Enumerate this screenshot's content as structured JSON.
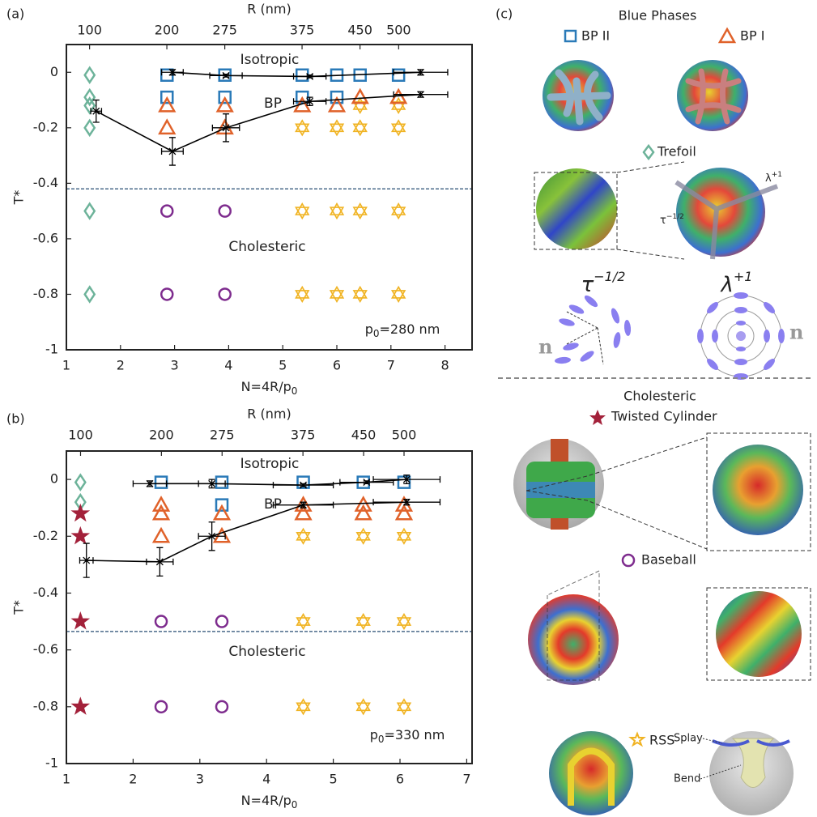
{
  "chart_data": [
    {
      "type": "scatter",
      "label": "(a)",
      "y_label": "T*",
      "x_label": {
        "text": "N=4R/p",
        "sub": "0"
      },
      "x2_label": "R (nm)",
      "xlim": [
        1,
        8.5
      ],
      "xticks": [
        1,
        2,
        3,
        4,
        5,
        6,
        7,
        8
      ],
      "x2lim": [
        70,
        595
      ],
      "x2ticks": [
        100,
        200,
        275,
        375,
        450,
        500
      ],
      "ylim": [
        -1,
        0.1
      ],
      "yticks": [
        -1,
        -0.8,
        -0.6,
        -0.4,
        -0.2,
        0
      ],
      "boundary": -0.42,
      "annotations": [
        "Isotropic",
        "BP",
        "Cholesteric"
      ],
      "pitch": {
        "text": "p",
        "sub": "0",
        "tail": "=280 nm"
      },
      "series": [
        {
          "marker": "diamond",
          "color": "#6db39a",
          "x": [
            1.43,
            1.43,
            1.43,
            1.43,
            1.43,
            1.43
          ],
          "y": [
            -0.01,
            -0.09,
            -0.12,
            -0.2,
            -0.5,
            -0.8
          ]
        },
        {
          "marker": "square",
          "color": "#2a7ab8",
          "x": [
            2.86,
            2.86,
            3.93,
            3.93,
            5.36,
            5.36,
            6.0,
            6.0,
            6.43,
            7.14
          ],
          "y": [
            -0.01,
            -0.09,
            -0.01,
            -0.09,
            -0.01,
            -0.09,
            -0.01,
            -0.09,
            -0.01,
            -0.01
          ]
        },
        {
          "marker": "hexagram",
          "color": "#f0b323",
          "x": [
            5.36,
            5.36,
            5.36,
            6.0,
            6.0,
            6.0,
            6.43,
            6.43,
            6.43,
            6.43,
            7.14,
            7.14,
            7.14,
            7.14
          ],
          "y": [
            -0.2,
            -0.5,
            -0.8,
            -0.2,
            -0.5,
            -0.8,
            -0.12,
            -0.2,
            -0.5,
            -0.8,
            -0.12,
            -0.2,
            -0.5,
            -0.8
          ]
        },
        {
          "marker": "triangle",
          "color": "#e0622a",
          "x": [
            2.86,
            2.86,
            3.93,
            3.93,
            5.36,
            6.0,
            6.43,
            7.14
          ],
          "y": [
            -0.12,
            -0.2,
            -0.12,
            -0.2,
            -0.12,
            -0.12,
            -0.09,
            -0.09
          ]
        },
        {
          "marker": "circle",
          "color": "#7e2c8e",
          "x": [
            2.86,
            2.86,
            3.93,
            3.93
          ],
          "y": [
            -0.5,
            -0.8,
            -0.5,
            -0.8
          ]
        },
        {
          "color": "#000000",
          "x": [
            2.96,
            3.95,
            5.5,
            7.55
          ],
          "y": [
            0,
            -0.012,
            -0.015,
            0
          ],
          "xerr": [
            0.2,
            0.3,
            0.3,
            0.5
          ],
          "yerr": [
            0.01,
            0.005,
            0.005,
            0.01
          ]
        },
        {
          "color": "#000000",
          "x": [
            1.55,
            2.96,
            3.95,
            5.5,
            7.55
          ],
          "y": [
            -0.14,
            -0.285,
            -0.2,
            -0.105,
            -0.08
          ],
          "xerr": [
            0.1,
            0.2,
            0.25,
            0.3,
            0.5
          ],
          "yerr": [
            0.04,
            0.05,
            0.05,
            0.015,
            0.01
          ]
        }
      ]
    },
    {
      "type": "scatter",
      "label": "(b)",
      "y_label": "T*",
      "x_label": {
        "text": "N=4R/p",
        "sub": "0"
      },
      "x2_label": "R (nm)",
      "xlim": [
        1,
        7.08
      ],
      "xticks": [
        1,
        2,
        3,
        4,
        5,
        6,
        7
      ],
      "x2lim": [
        82.5,
        584.1
      ],
      "x2ticks": [
        100,
        200,
        275,
        375,
        450,
        500
      ],
      "ylim": [
        -1,
        0.1
      ],
      "yticks": [
        -1,
        -0.8,
        -0.6,
        -0.4,
        -0.2,
        0
      ],
      "boundary": -0.535,
      "annotations": [
        "Isotropic",
        "BP",
        "Cholesteric"
      ],
      "pitch": {
        "text": "p",
        "sub": "0",
        "tail": "=330 nm"
      },
      "series": [
        {
          "marker": "diamond",
          "color": "#6db39a",
          "x": [
            1.21,
            1.21
          ],
          "y": [
            -0.01,
            -0.08
          ]
        },
        {
          "marker": "pentagram",
          "color": "#a3213a",
          "x": [
            1.21,
            1.21,
            1.21,
            1.21
          ],
          "y": [
            -0.12,
            -0.2,
            -0.5,
            -0.8
          ]
        },
        {
          "marker": "square",
          "color": "#2a7ab8",
          "x": [
            2.42,
            3.33,
            3.33,
            4.55,
            5.45,
            6.06
          ],
          "y": [
            -0.01,
            -0.01,
            -0.09,
            -0.01,
            -0.01,
            -0.01
          ]
        },
        {
          "marker": "hexagram",
          "color": "#f0b323",
          "x": [
            4.55,
            4.55,
            4.55,
            5.45,
            5.45,
            5.45,
            6.06,
            6.06,
            6.06
          ],
          "y": [
            -0.2,
            -0.5,
            -0.8,
            -0.2,
            -0.5,
            -0.8,
            -0.2,
            -0.5,
            -0.8
          ]
        },
        {
          "marker": "triangle",
          "color": "#e0622a",
          "x": [
            2.42,
            2.42,
            2.42,
            3.33,
            3.33,
            4.55,
            4.55,
            5.45,
            5.45,
            6.06,
            6.06
          ],
          "y": [
            -0.09,
            -0.12,
            -0.2,
            -0.12,
            -0.2,
            -0.09,
            -0.12,
            -0.09,
            -0.12,
            -0.09,
            -0.12
          ]
        },
        {
          "marker": "circle",
          "color": "#7e2c8e",
          "x": [
            2.42,
            2.42,
            3.33,
            3.33
          ],
          "y": [
            -0.5,
            -0.8,
            -0.5,
            -0.8
          ]
        },
        {
          "color": "#000000",
          "x": [
            2.25,
            3.18,
            4.55,
            5.5,
            6.1
          ],
          "y": [
            -0.015,
            -0.015,
            -0.02,
            -0.01,
            0
          ],
          "xerr": [
            0.25,
            0.2,
            0.45,
            0.4,
            0.5
          ],
          "yerr": [
            0.01,
            0.015,
            0.005,
            0.005,
            0.015
          ]
        },
        {
          "color": "#000000",
          "x": [
            1.3,
            2.4,
            3.18,
            4.55,
            6.1
          ],
          "y": [
            -0.285,
            -0.29,
            -0.2,
            -0.09,
            -0.08
          ],
          "xerr": [
            0.1,
            0.2,
            0.2,
            0.45,
            0.5
          ],
          "yerr": [
            0.06,
            0.05,
            0.05,
            0.01,
            0.01
          ]
        }
      ]
    }
  ],
  "panel_c": {
    "label": "(c)",
    "title": "Blue Phases",
    "bp2": "BP II",
    "bp1": "BP I",
    "trefoil": "Trefoil",
    "tau": {
      "base": "τ",
      "sup": "−1/2"
    },
    "lambda": {
      "base": "λ",
      "sup": "+1"
    },
    "director": "n",
    "section": "Cholesteric",
    "twisted": "Twisted Cylinder",
    "baseball": "Baseball",
    "rss": "RSS",
    "splay": "Splay",
    "bend": "Bend"
  }
}
